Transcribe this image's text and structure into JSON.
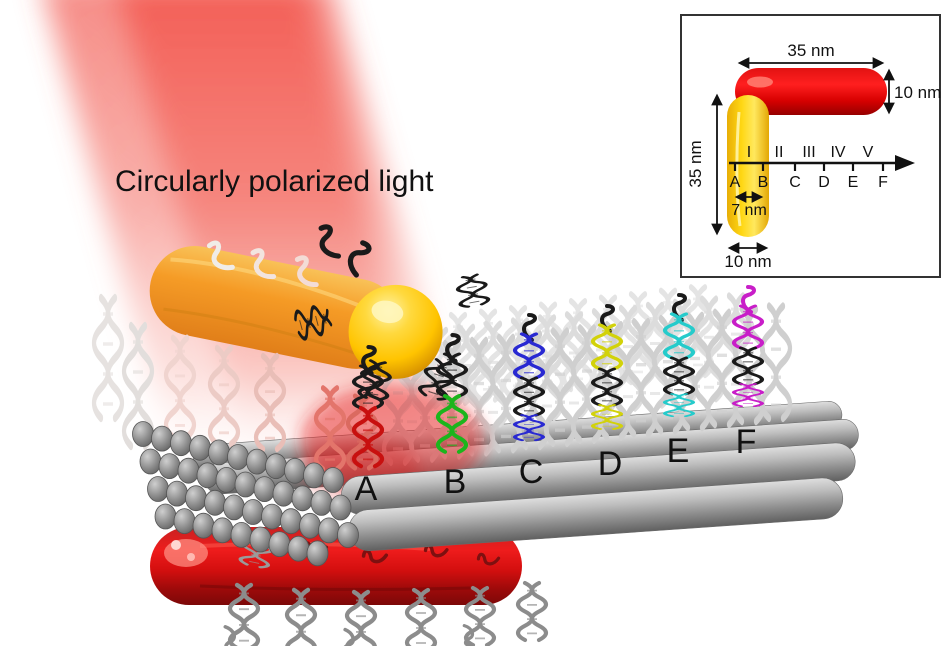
{
  "figure": {
    "light_label": "Circularly polarized light"
  },
  "sites": [
    {
      "label": "A",
      "color": "#c8100f"
    },
    {
      "label": "B",
      "color": "#1cb51c"
    },
    {
      "label": "C",
      "color": "#2929d2"
    },
    {
      "label": "D",
      "color": "#d2d20a"
    },
    {
      "label": "E",
      "color": "#25cbcb"
    },
    {
      "label": "F",
      "color": "#c81ec8"
    }
  ],
  "inset": {
    "intervals": [
      "I",
      "II",
      "III",
      "IV",
      "V"
    ],
    "rod_length": "35 nm",
    "rod_diameter": "10 nm",
    "upright_rod_length": "35 nm",
    "upright_rod_width": "10 nm",
    "site_spacing": "7 nm"
  },
  "colors": {
    "beam": "#f4655c",
    "gold_nanorod": "#f6a61e",
    "red_nanorod": "#dd1414",
    "platform": "#9c9c9c"
  }
}
